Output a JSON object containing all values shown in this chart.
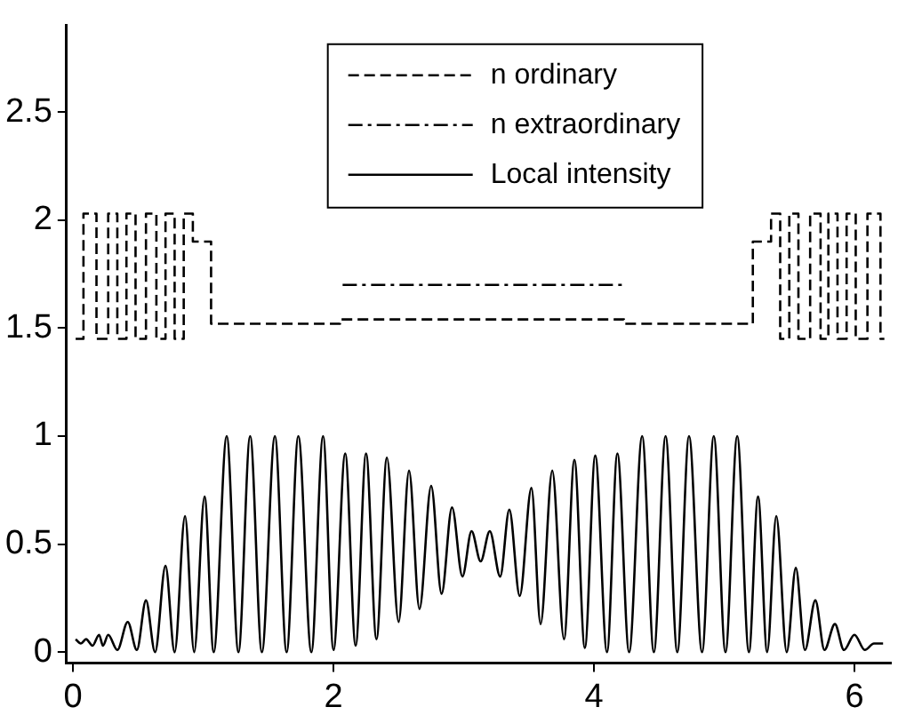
{
  "chart_data": {
    "type": "line",
    "xlim": [
      -0.05,
      6.28
    ],
    "xticks": [
      0,
      2,
      4,
      6
    ],
    "ylim": [
      -0.05,
      2.9
    ],
    "yticks": [
      0,
      0.5,
      1,
      1.5,
      2,
      2.5
    ],
    "grid": false,
    "legend": "top",
    "marker": "none",
    "series": [
      {
        "name": "n ordinary",
        "type": "step",
        "color": "#000000",
        "line_style": "dashed",
        "x": [
          0.02,
          0.08,
          0.18,
          0.27,
          0.34,
          0.41,
          0.48,
          0.56,
          0.64,
          0.71,
          0.78,
          0.85,
          0.92,
          1.06,
          2.05,
          4.23,
          5.22,
          5.36,
          5.43,
          5.5,
          5.57,
          5.66,
          5.74,
          5.8,
          5.87,
          5.94,
          6.01,
          6.1,
          6.2,
          6.23
        ],
        "values": [
          1.45,
          2.03,
          1.45,
          2.03,
          1.45,
          2.03,
          1.45,
          2.03,
          1.45,
          2.03,
          1.45,
          2.03,
          1.9,
          1.52,
          1.54,
          1.52,
          1.9,
          2.03,
          1.45,
          2.03,
          1.45,
          2.03,
          1.45,
          2.03,
          1.45,
          2.03,
          1.45,
          2.03,
          1.45,
          1.45
        ]
      },
      {
        "name": "n extraordinary",
        "type": "line",
        "color": "#000000",
        "line_style": "dashdot",
        "x": [
          2.07,
          4.23
        ],
        "values": [
          1.7,
          1.7
        ]
      },
      {
        "name": "Local intensity",
        "type": "line",
        "color": "#000000",
        "line_style": "solid",
        "x": [
          0.02,
          0.06,
          0.1,
          0.15,
          0.2,
          0.23,
          0.27,
          0.34,
          0.42,
          0.49,
          0.56,
          0.63,
          0.71,
          0.78,
          0.86,
          0.93,
          1.01,
          1.08,
          1.18,
          1.27,
          1.36,
          1.45,
          1.55,
          1.64,
          1.73,
          1.83,
          1.92,
          2.0,
          2.09,
          2.17,
          2.25,
          2.33,
          2.41,
          2.5,
          2.58,
          2.66,
          2.75,
          2.83,
          2.91,
          2.99,
          3.06,
          3.13,
          3.2,
          3.28,
          3.35,
          3.43,
          3.52,
          3.59,
          3.68,
          3.77,
          3.85,
          3.93,
          4.01,
          4.1,
          4.18,
          4.27,
          4.37,
          4.46,
          4.55,
          4.64,
          4.73,
          4.83,
          4.92,
          5.01,
          5.1,
          5.19,
          5.26,
          5.33,
          5.4,
          5.48,
          5.55,
          5.62,
          5.7,
          5.77,
          5.85,
          5.92,
          6.0,
          6.08,
          6.15,
          6.22
        ],
        "values": [
          0.06,
          0.04,
          0.06,
          0.03,
          0.08,
          0.03,
          0.08,
          0.01,
          0.14,
          0.01,
          0.24,
          0,
          0.4,
          0,
          0.63,
          0,
          0.72,
          0,
          1,
          0,
          1,
          0,
          1,
          0,
          1,
          0,
          1,
          0.01,
          0.92,
          0.03,
          0.92,
          0.06,
          0.9,
          0.14,
          0.84,
          0.2,
          0.77,
          0.27,
          0.67,
          0.35,
          0.56,
          0.42,
          0.56,
          0.35,
          0.66,
          0.26,
          0.76,
          0.13,
          0.84,
          0.06,
          0.89,
          0.02,
          0.91,
          0,
          0.92,
          0,
          1,
          0,
          1,
          0,
          1,
          0,
          1,
          0,
          1,
          0,
          0.72,
          0,
          0.63,
          0,
          0.39,
          0.01,
          0.24,
          0.01,
          0.13,
          0.01,
          0.08,
          0.01,
          0.04,
          0.04
        ]
      }
    ]
  }
}
